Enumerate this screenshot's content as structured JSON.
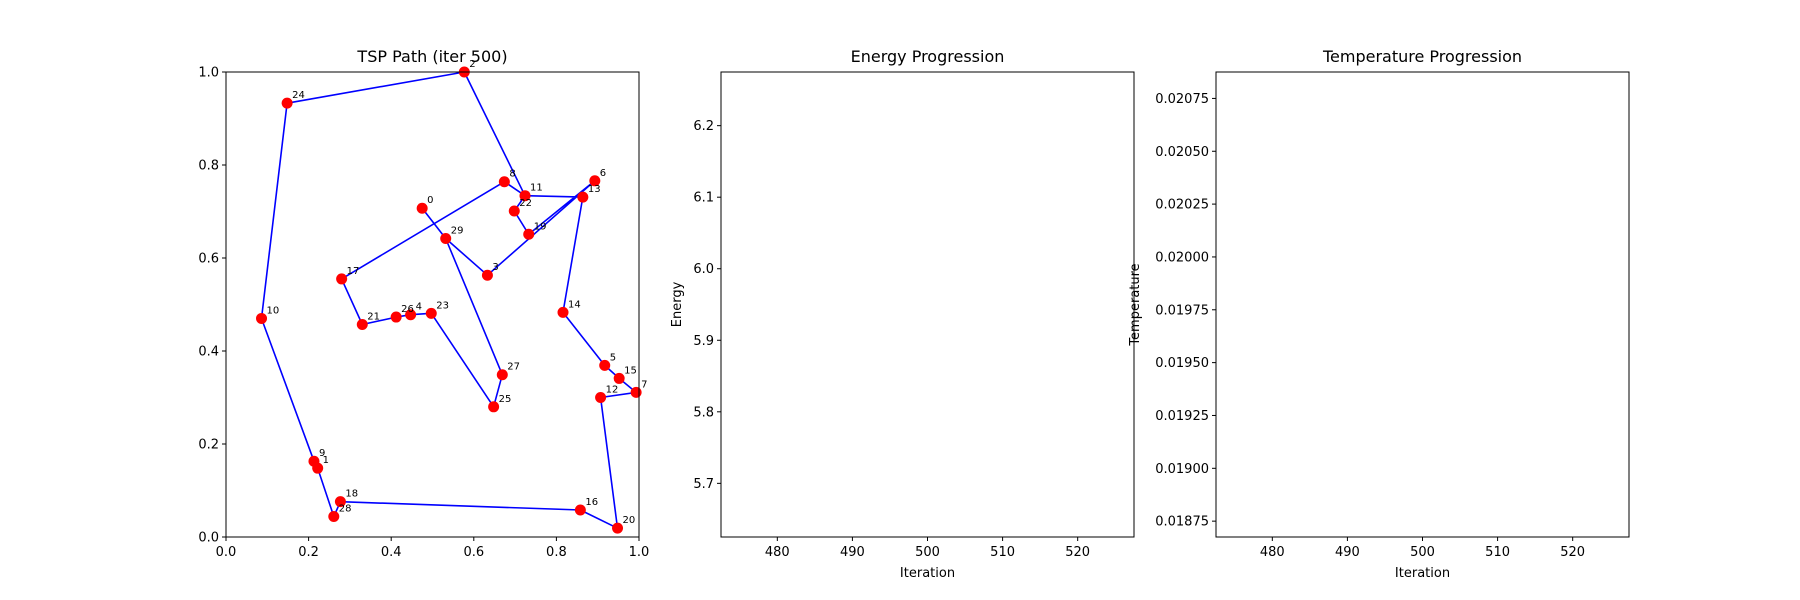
{
  "chart_data": [
    {
      "type": "scatter",
      "title": "TSP Path (iter 500)",
      "xlabel": "",
      "ylabel": "",
      "xlim": [
        0.0,
        1.0
      ],
      "ylim": [
        0.0,
        1.0
      ],
      "xticks": [
        "0.0",
        "0.2",
        "0.4",
        "0.6",
        "0.8",
        "1.0"
      ],
      "yticks": [
        "0.0",
        "0.2",
        "0.4",
        "0.6",
        "0.8",
        "1.0"
      ],
      "grid": false,
      "point_color": "#ff0000",
      "path_color": "#0000ff",
      "points": [
        {
          "id": "0",
          "x": 0.475,
          "y": 0.707
        },
        {
          "id": "1",
          "x": 0.222,
          "y": 0.148
        },
        {
          "id": "2",
          "x": 0.577,
          "y": 1.0
        },
        {
          "id": "3",
          "x": 0.633,
          "y": 0.563
        },
        {
          "id": "4",
          "x": 0.447,
          "y": 0.478
        },
        {
          "id": "5",
          "x": 0.917,
          "y": 0.369
        },
        {
          "id": "6",
          "x": 0.893,
          "y": 0.766
        },
        {
          "id": "7",
          "x": 0.993,
          "y": 0.311
        },
        {
          "id": "8",
          "x": 0.674,
          "y": 0.764
        },
        {
          "id": "9",
          "x": 0.213,
          "y": 0.163
        },
        {
          "id": "10",
          "x": 0.086,
          "y": 0.47
        },
        {
          "id": "11",
          "x": 0.724,
          "y": 0.734
        },
        {
          "id": "12",
          "x": 0.907,
          "y": 0.3
        },
        {
          "id": "13",
          "x": 0.864,
          "y": 0.731
        },
        {
          "id": "14",
          "x": 0.816,
          "y": 0.483
        },
        {
          "id": "15",
          "x": 0.952,
          "y": 0.341
        },
        {
          "id": "16",
          "x": 0.858,
          "y": 0.058
        },
        {
          "id": "17",
          "x": 0.28,
          "y": 0.555
        },
        {
          "id": "18",
          "x": 0.277,
          "y": 0.076
        },
        {
          "id": "19",
          "x": 0.733,
          "y": 0.651
        },
        {
          "id": "20",
          "x": 0.948,
          "y": 0.019
        },
        {
          "id": "21",
          "x": 0.33,
          "y": 0.457
        },
        {
          "id": "22",
          "x": 0.698,
          "y": 0.701
        },
        {
          "id": "23",
          "x": 0.497,
          "y": 0.481
        },
        {
          "id": "24",
          "x": 0.148,
          "y": 0.933
        },
        {
          "id": "25",
          "x": 0.648,
          "y": 0.28
        },
        {
          "id": "26",
          "x": 0.412,
          "y": 0.473
        },
        {
          "id": "27",
          "x": 0.669,
          "y": 0.349
        },
        {
          "id": "28",
          "x": 0.261,
          "y": 0.044
        },
        {
          "id": "29",
          "x": 0.532,
          "y": 0.642
        }
      ],
      "tour": [
        "0",
        "29",
        "27",
        "25",
        "23",
        "4",
        "26",
        "21",
        "17",
        "8",
        "11",
        "13",
        "14",
        "5",
        "15",
        "7",
        "12",
        "20",
        "16",
        "18",
        "28",
        "1",
        "9",
        "10",
        "24",
        "2",
        "11",
        "22",
        "19",
        "6",
        "3",
        "29",
        "0"
      ]
    },
    {
      "type": "line",
      "title": "Energy Progression",
      "xlabel": "Iteration",
      "ylabel": "Energy",
      "xlim": [
        472.5,
        527.5
      ],
      "ylim": [
        5.625,
        6.275
      ],
      "xticks": [
        {
          "value": 480,
          "label": "480"
        },
        {
          "value": 490,
          "label": "490"
        },
        {
          "value": 500,
          "label": "500"
        },
        {
          "value": 510,
          "label": "510"
        },
        {
          "value": 520,
          "label": "520"
        }
      ],
      "yticks": [
        {
          "value": 5.7,
          "label": "5.7"
        },
        {
          "value": 5.8,
          "label": "5.8"
        },
        {
          "value": 5.9,
          "label": "5.9"
        },
        {
          "value": 6.0,
          "label": "6.0"
        },
        {
          "value": 6.1,
          "label": "6.1"
        },
        {
          "value": 6.2,
          "label": "6.2"
        }
      ],
      "grid": false,
      "series": []
    },
    {
      "type": "line",
      "title": "Temperature Progression",
      "xlabel": "Iteration",
      "ylabel": "Temperature",
      "xlim": [
        472.5,
        527.5
      ],
      "ylim": [
        0.018675,
        0.020875
      ],
      "xticks": [
        {
          "value": 480,
          "label": "480"
        },
        {
          "value": 490,
          "label": "490"
        },
        {
          "value": 500,
          "label": "500"
        },
        {
          "value": 510,
          "label": "510"
        },
        {
          "value": 520,
          "label": "520"
        }
      ],
      "yticks": [
        {
          "value": 0.01875,
          "label": "0.01875"
        },
        {
          "value": 0.019,
          "label": "0.01900"
        },
        {
          "value": 0.01925,
          "label": "0.01925"
        },
        {
          "value": 0.0195,
          "label": "0.01950"
        },
        {
          "value": 0.01975,
          "label": "0.01975"
        },
        {
          "value": 0.02,
          "label": "0.02000"
        },
        {
          "value": 0.02025,
          "label": "0.02025"
        },
        {
          "value": 0.0205,
          "label": "0.02050"
        },
        {
          "value": 0.02075,
          "label": "0.02075"
        }
      ],
      "grid": false,
      "series": []
    }
  ]
}
